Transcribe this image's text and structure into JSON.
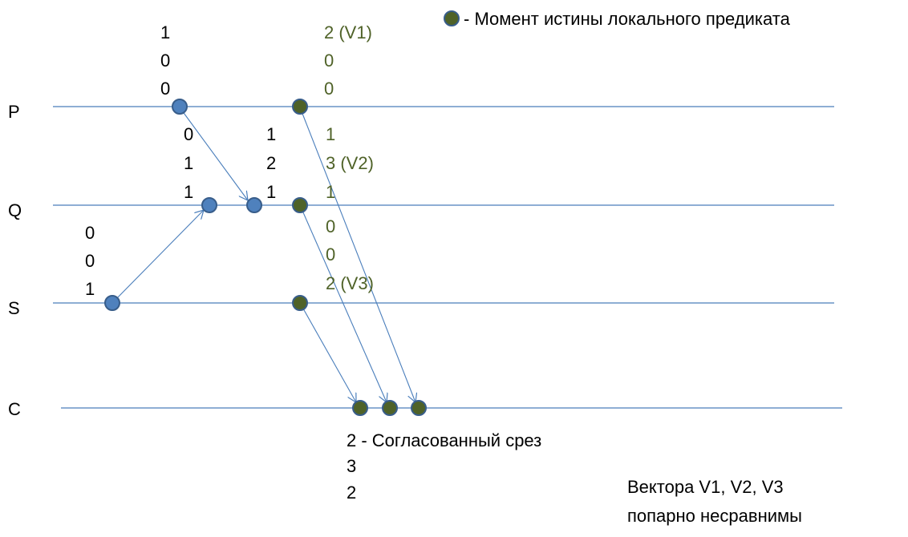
{
  "legend": {
    "text": "- Момент истины локального предиката"
  },
  "colors": {
    "line": "#4a7ebb",
    "event_fill": "#4f81bd",
    "event_stroke": "#385d8a",
    "truth_fill": "#4f6228",
    "green_text": "#4f6228",
    "text": "#000000"
  },
  "processes": [
    "P",
    "Q",
    "S",
    "C"
  ],
  "vectors": {
    "p_first": [
      "1",
      "0",
      "0"
    ],
    "p_truth": [
      "2 (V1)",
      "0",
      "0"
    ],
    "q_first": [
      "0",
      "1",
      "1"
    ],
    "q_second": [
      "1",
      "2",
      "1"
    ],
    "q_truth": [
      "1",
      "3 (V2)",
      "1"
    ],
    "s_first": [
      "0",
      "0",
      "1"
    ],
    "s_truth": [
      "0",
      "0",
      "2 (V3)"
    ],
    "cut": [
      "2 - Согласованный срез",
      "3",
      "2"
    ]
  },
  "note": [
    "Вектора V1, V2, V3",
    "попарно несравнимы"
  ]
}
